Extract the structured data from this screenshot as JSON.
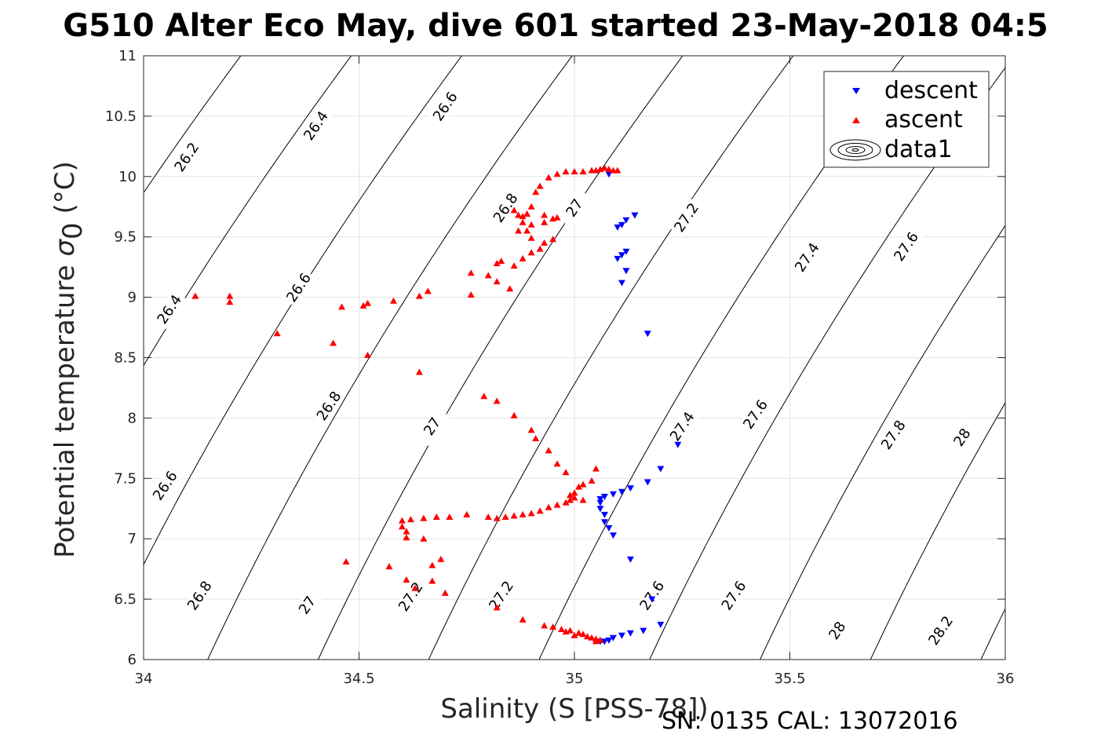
{
  "figure": {
    "title": "G510 Alter Eco May, dive 601 started 23-May-2018 04:5",
    "footer": "SN: 0135  CAL: 13072016"
  },
  "chart_data": {
    "type": "scatter",
    "title": "G510 Alter Eco May, dive 601 started 23-May-2018 04:5",
    "xlabel": "Salinity (S [PSS-78])",
    "ylabel": "Potential temperature σ0 (°C)",
    "ylabel_parts": {
      "main": "Potential temperature ",
      "sym": "σ",
      "sub": "0",
      "unit": " (°C)"
    },
    "xlim": [
      34,
      36
    ],
    "ylim": [
      6,
      11
    ],
    "xticks": [
      34,
      34.5,
      35,
      35.5,
      36
    ],
    "xtick_labels": [
      "34",
      "34.5",
      "35",
      "35.5",
      "36"
    ],
    "yticks": [
      6,
      6.5,
      7,
      7.5,
      8,
      8.5,
      9,
      9.5,
      10,
      10.5,
      11
    ],
    "ytick_labels": [
      "6",
      "6.5",
      "7",
      "7.5",
      "8",
      "8.5",
      "9",
      "9.5",
      "10",
      "10.5",
      "11"
    ],
    "grid": true,
    "legend": {
      "placement": "top-right",
      "entries": [
        "descent",
        "ascent",
        "data1"
      ]
    },
    "series": [
      {
        "name": "descent",
        "marker": "triangle-down",
        "color": "#0000ff",
        "points": [
          [
            35.08,
            10.02
          ],
          [
            35.1,
            9.58
          ],
          [
            35.11,
            9.6
          ],
          [
            35.12,
            9.64
          ],
          [
            35.14,
            9.68
          ],
          [
            35.1,
            9.32
          ],
          [
            35.11,
            9.35
          ],
          [
            35.12,
            9.38
          ],
          [
            35.12,
            9.22
          ],
          [
            35.11,
            9.12
          ],
          [
            35.17,
            8.7
          ],
          [
            35.24,
            7.78
          ],
          [
            35.2,
            7.58
          ],
          [
            35.17,
            7.47
          ],
          [
            35.13,
            7.42
          ],
          [
            35.11,
            7.39
          ],
          [
            35.09,
            7.37
          ],
          [
            35.07,
            7.35
          ],
          [
            35.06,
            7.33
          ],
          [
            35.06,
            7.3
          ],
          [
            35.06,
            7.25
          ],
          [
            35.07,
            7.2
          ],
          [
            35.07,
            7.14
          ],
          [
            35.08,
            7.09
          ],
          [
            35.09,
            7.03
          ],
          [
            35.13,
            6.83
          ],
          [
            35.18,
            6.5
          ],
          [
            35.2,
            6.29
          ],
          [
            35.16,
            6.24
          ],
          [
            35.13,
            6.22
          ],
          [
            35.11,
            6.2
          ],
          [
            35.09,
            6.18
          ],
          [
            35.08,
            6.16
          ],
          [
            35.07,
            6.15
          ],
          [
            35.06,
            6.15
          ]
        ]
      },
      {
        "name": "ascent",
        "marker": "triangle-up",
        "color": "#ff0000",
        "points": [
          [
            35.06,
            10.06
          ],
          [
            35.07,
            10.07
          ],
          [
            35.08,
            10.06
          ],
          [
            35.09,
            10.05
          ],
          [
            35.1,
            10.05
          ],
          [
            35.05,
            10.05
          ],
          [
            35.04,
            10.05
          ],
          [
            35.02,
            10.04
          ],
          [
            35.0,
            10.04
          ],
          [
            34.98,
            10.04
          ],
          [
            34.96,
            10.02
          ],
          [
            34.94,
            9.99
          ],
          [
            34.92,
            9.92
          ],
          [
            34.91,
            9.87
          ],
          [
            34.9,
            9.75
          ],
          [
            34.89,
            9.69
          ],
          [
            34.88,
            9.67
          ],
          [
            34.87,
            9.68
          ],
          [
            34.86,
            9.72
          ],
          [
            34.88,
            9.62
          ],
          [
            34.89,
            9.55
          ],
          [
            34.9,
            9.49
          ],
          [
            34.87,
            9.55
          ],
          [
            34.9,
            9.6
          ],
          [
            34.93,
            9.62
          ],
          [
            34.95,
            9.65
          ],
          [
            34.96,
            9.66
          ],
          [
            34.93,
            9.68
          ],
          [
            34.95,
            9.48
          ],
          [
            34.93,
            9.45
          ],
          [
            34.92,
            9.4
          ],
          [
            34.9,
            9.37
          ],
          [
            34.88,
            9.32
          ],
          [
            34.86,
            9.26
          ],
          [
            34.83,
            9.3
          ],
          [
            34.82,
            9.28
          ],
          [
            34.8,
            9.18
          ],
          [
            34.76,
            9.2
          ],
          [
            34.82,
            9.13
          ],
          [
            34.85,
            9.07
          ],
          [
            34.76,
            9.02
          ],
          [
            34.66,
            9.05
          ],
          [
            34.64,
            9.01
          ],
          [
            34.58,
            8.97
          ],
          [
            34.52,
            8.95
          ],
          [
            34.51,
            8.93
          ],
          [
            34.46,
            8.92
          ],
          [
            34.44,
            8.62
          ],
          [
            34.52,
            8.52
          ],
          [
            34.31,
            8.7
          ],
          [
            34.2,
            8.96
          ],
          [
            34.2,
            9.01
          ],
          [
            34.12,
            9.01
          ],
          [
            34.64,
            8.38
          ],
          [
            34.79,
            8.18
          ],
          [
            34.82,
            8.14
          ],
          [
            34.86,
            8.02
          ],
          [
            34.9,
            7.9
          ],
          [
            34.91,
            7.83
          ],
          [
            34.94,
            7.73
          ],
          [
            34.96,
            7.62
          ],
          [
            34.98,
            7.55
          ],
          [
            35.05,
            7.58
          ],
          [
            35.04,
            7.48
          ],
          [
            35.02,
            7.45
          ],
          [
            35.01,
            7.43
          ],
          [
            35.0,
            7.38
          ],
          [
            34.99,
            7.36
          ],
          [
            35.0,
            7.34
          ],
          [
            35.02,
            7.32
          ],
          [
            34.99,
            7.32
          ],
          [
            34.98,
            7.3
          ],
          [
            34.96,
            7.28
          ],
          [
            34.94,
            7.26
          ],
          [
            34.92,
            7.23
          ],
          [
            34.9,
            7.21
          ],
          [
            34.88,
            7.2
          ],
          [
            34.86,
            7.19
          ],
          [
            34.84,
            7.18
          ],
          [
            34.82,
            7.17
          ],
          [
            34.8,
            7.18
          ],
          [
            34.75,
            7.2
          ],
          [
            34.71,
            7.18
          ],
          [
            34.68,
            7.18
          ],
          [
            34.65,
            7.17
          ],
          [
            34.62,
            7.16
          ],
          [
            34.6,
            7.15
          ],
          [
            34.6,
            7.1
          ],
          [
            34.61,
            7.06
          ],
          [
            34.61,
            7.01
          ],
          [
            34.65,
            7.0
          ],
          [
            34.57,
            6.77
          ],
          [
            34.61,
            6.66
          ],
          [
            34.63,
            6.59
          ],
          [
            34.67,
            6.78
          ],
          [
            34.69,
            6.83
          ],
          [
            34.67,
            6.65
          ],
          [
            34.7,
            6.55
          ],
          [
            34.47,
            6.81
          ],
          [
            34.82,
            6.43
          ],
          [
            34.88,
            6.33
          ],
          [
            34.93,
            6.28
          ],
          [
            34.95,
            6.27
          ],
          [
            34.97,
            6.25
          ],
          [
            34.99,
            6.24
          ],
          [
            35.01,
            6.22
          ],
          [
            35.02,
            6.21
          ],
          [
            35.03,
            6.19
          ],
          [
            35.04,
            6.18
          ],
          [
            35.05,
            6.17
          ],
          [
            35.06,
            6.16
          ],
          [
            35.05,
            6.15
          ],
          [
            34.98,
            6.23
          ],
          [
            35.0,
            6.2
          ]
        ]
      }
    ],
    "density_contours": {
      "levels": [
        26.2,
        26.4,
        26.6,
        26.8,
        27,
        27.2,
        27.4,
        27.6,
        27.8,
        28,
        28.2
      ],
      "label_positions": [
        [
          34.1,
          10.16
        ],
        [
          34.4,
          10.42
        ],
        [
          34.7,
          10.58
        ],
        [
          34.06,
          8.9
        ],
        [
          34.36,
          9.08
        ],
        [
          34.84,
          9.74
        ],
        [
          34.05,
          7.44
        ],
        [
          34.43,
          8.1
        ],
        [
          35.0,
          9.74
        ],
        [
          35.26,
          9.66
        ],
        [
          34.13,
          6.53
        ],
        [
          34.67,
          7.93
        ],
        [
          35.25,
          7.93
        ],
        [
          35.54,
          9.33
        ],
        [
          34.38,
          6.45
        ],
        [
          34.83,
          6.53
        ],
        [
          35.18,
          6.53
        ],
        [
          35.77,
          9.42
        ],
        [
          34.62,
          6.52
        ],
        [
          35.42,
          8.03
        ],
        [
          35.74,
          7.86
        ],
        [
          35.61,
          6.24
        ],
        [
          35.37,
          6.53
        ],
        [
          35.9,
          7.84
        ],
        [
          35.85,
          6.24
        ]
      ]
    }
  }
}
